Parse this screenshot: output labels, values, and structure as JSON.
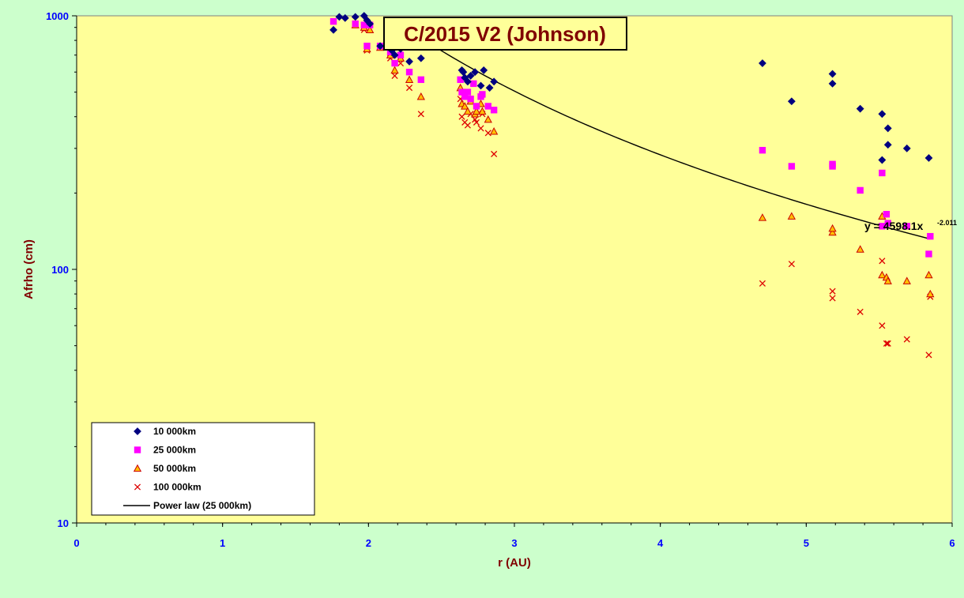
{
  "chart_data": {
    "type": "scatter",
    "title": "C/2015 V2 (Johnson)",
    "xlabel": "r (AU)",
    "ylabel": "Afrho (cm)",
    "xlim": [
      0,
      6
    ],
    "ylim": [
      10,
      1000
    ],
    "yscale": "log",
    "x_ticks": [
      "0",
      "1",
      "2",
      "3",
      "4",
      "5",
      "6"
    ],
    "y_ticks": [
      "10",
      "100",
      "1000"
    ],
    "grid": false,
    "legend_position": "bottom-left",
    "colors": {
      "plot_bg": "#ffff99",
      "outer_bg": "#ccffcc",
      "series_10000": "#000080",
      "series_25000": "#ff00ff",
      "series_50000_fill": "#ffc000",
      "series_50000_edge": "#cc0000",
      "series_100000": "#dd0000",
      "fit_line": "#000000"
    },
    "series": [
      {
        "name": "10 000km",
        "marker": "diamond",
        "points": [
          [
            1.76,
            880
          ],
          [
            1.8,
            990
          ],
          [
            1.84,
            980
          ],
          [
            1.91,
            990
          ],
          [
            1.97,
            1000
          ],
          [
            1.99,
            960
          ],
          [
            2.01,
            930
          ],
          [
            2.08,
            760
          ],
          [
            2.16,
            730
          ],
          [
            2.18,
            700
          ],
          [
            2.22,
            740
          ],
          [
            2.28,
            660
          ],
          [
            2.36,
            680
          ],
          [
            2.64,
            610
          ],
          [
            2.65,
            600
          ],
          [
            2.66,
            570
          ],
          [
            2.68,
            550
          ],
          [
            2.7,
            580
          ],
          [
            2.73,
            600
          ],
          [
            2.77,
            530
          ],
          [
            2.79,
            610
          ],
          [
            2.83,
            520
          ],
          [
            2.86,
            550
          ],
          [
            4.7,
            650
          ],
          [
            4.9,
            460
          ],
          [
            5.18,
            540
          ],
          [
            5.18,
            590
          ],
          [
            5.37,
            430
          ],
          [
            5.52,
            410
          ],
          [
            5.52,
            270
          ],
          [
            5.56,
            360
          ],
          [
            5.56,
            310
          ],
          [
            5.69,
            300
          ],
          [
            5.84,
            275
          ]
        ]
      },
      {
        "name": "25 000km",
        "marker": "square",
        "points": [
          [
            1.76,
            950
          ],
          [
            1.91,
            930
          ],
          [
            1.97,
            920
          ],
          [
            1.99,
            760
          ],
          [
            2.01,
            920
          ],
          [
            2.08,
            760
          ],
          [
            2.15,
            720
          ],
          [
            2.18,
            650
          ],
          [
            2.22,
            700
          ],
          [
            2.28,
            600
          ],
          [
            2.36,
            560
          ],
          [
            2.63,
            560
          ],
          [
            2.64,
            500
          ],
          [
            2.66,
            480
          ],
          [
            2.68,
            500
          ],
          [
            2.7,
            470
          ],
          [
            2.72,
            540
          ],
          [
            2.74,
            440
          ],
          [
            2.77,
            480
          ],
          [
            2.78,
            490
          ],
          [
            2.82,
            440
          ],
          [
            2.86,
            425
          ],
          [
            4.7,
            295
          ],
          [
            4.9,
            255
          ],
          [
            5.18,
            255
          ],
          [
            5.18,
            260
          ],
          [
            5.37,
            205
          ],
          [
            5.52,
            240
          ],
          [
            5.52,
            148
          ],
          [
            5.55,
            165
          ],
          [
            5.56,
            152
          ],
          [
            5.69,
            148
          ],
          [
            5.84,
            115
          ],
          [
            5.85,
            135
          ]
        ]
      },
      {
        "name": "50 000km",
        "marker": "triangle",
        "points": [
          [
            1.91,
            920
          ],
          [
            1.97,
            900
          ],
          [
            1.99,
            740
          ],
          [
            2.01,
            880
          ],
          [
            2.08,
            750
          ],
          [
            2.15,
            700
          ],
          [
            2.18,
            610
          ],
          [
            2.22,
            680
          ],
          [
            2.28,
            560
          ],
          [
            2.36,
            480
          ],
          [
            2.63,
            520
          ],
          [
            2.64,
            450
          ],
          [
            2.66,
            440
          ],
          [
            2.68,
            420
          ],
          [
            2.7,
            460
          ],
          [
            2.73,
            410
          ],
          [
            2.74,
            420
          ],
          [
            2.77,
            450
          ],
          [
            2.78,
            420
          ],
          [
            2.82,
            390
          ],
          [
            2.86,
            350
          ],
          [
            4.7,
            160
          ],
          [
            4.9,
            162
          ],
          [
            5.18,
            140
          ],
          [
            5.18,
            145
          ],
          [
            5.37,
            120
          ],
          [
            5.52,
            95
          ],
          [
            5.52,
            162
          ],
          [
            5.55,
            93
          ],
          [
            5.56,
            90
          ],
          [
            5.69,
            90
          ],
          [
            5.84,
            95
          ],
          [
            5.85,
            80
          ]
        ]
      },
      {
        "name": "100 000km",
        "marker": "x",
        "points": [
          [
            1.91,
            930
          ],
          [
            1.97,
            880
          ],
          [
            1.99,
            730
          ],
          [
            2.08,
            760
          ],
          [
            2.15,
            680
          ],
          [
            2.18,
            580
          ],
          [
            2.22,
            650
          ],
          [
            2.28,
            520
          ],
          [
            2.36,
            410
          ],
          [
            2.63,
            470
          ],
          [
            2.64,
            400
          ],
          [
            2.66,
            380
          ],
          [
            2.68,
            370
          ],
          [
            2.7,
            410
          ],
          [
            2.73,
            390
          ],
          [
            2.74,
            380
          ],
          [
            2.77,
            360
          ],
          [
            2.78,
            410
          ],
          [
            2.82,
            345
          ],
          [
            2.86,
            285
          ],
          [
            4.7,
            88
          ],
          [
            4.9,
            105
          ],
          [
            5.18,
            82
          ],
          [
            5.18,
            77
          ],
          [
            5.37,
            68
          ],
          [
            5.52,
            108
          ],
          [
            5.52,
            60
          ],
          [
            5.55,
            51
          ],
          [
            5.56,
            51
          ],
          [
            5.69,
            53
          ],
          [
            5.84,
            46
          ],
          [
            5.85,
            78
          ]
        ]
      }
    ],
    "fit": {
      "name": "Power law (25 000km)",
      "a": 4598.1,
      "b": -2.011,
      "x_range": [
        2.15,
        5.85
      ],
      "equation_main": "y = 4598.1x",
      "equation_exp": "-2.011"
    }
  }
}
